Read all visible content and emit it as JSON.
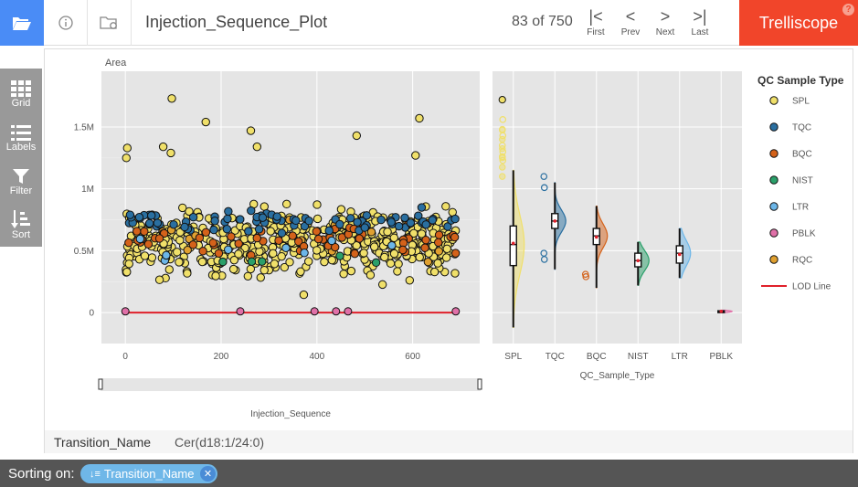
{
  "header": {
    "title": "Injection_Sequence_Plot",
    "panel_count": "83 of 750",
    "pager": [
      {
        "glyph": "|<",
        "label": "First"
      },
      {
        "glyph": "<",
        "label": "Prev"
      },
      {
        "glyph": ">",
        "label": "Next"
      },
      {
        "glyph": ">|",
        "label": "Last"
      }
    ],
    "brand": "Trelliscope",
    "help": "?"
  },
  "sidebar": {
    "items": [
      {
        "label": "Grid",
        "icon": "grid-icon"
      },
      {
        "label": "Labels",
        "icon": "labels-icon"
      },
      {
        "label": "Filter",
        "icon": "filter-icon"
      },
      {
        "label": "Sort",
        "icon": "sort-icon"
      }
    ]
  },
  "cognostic": {
    "name": "Transition_Name",
    "value": "Cer(d18:1/24:0)"
  },
  "footer": {
    "sorting_label": "Sorting on:",
    "sort_chip": "Transition_Name"
  },
  "colors": {
    "SPL": "#f0e06a",
    "TQC": "#2a6fa0",
    "BQC": "#d4621a",
    "NIST": "#2aa06a",
    "LTR": "#6cb6e8",
    "PBLK": "#e070a8",
    "RQC": "#e0a030",
    "LOD": "#e0202a",
    "plot_bg": "#e5e5e5",
    "header_blue": "#4a8cf6",
    "brand_red": "#f1452a"
  },
  "chart_data": [
    {
      "type": "scatter",
      "title": "",
      "ylabel": "Area",
      "xlabel": "Injection_Sequence",
      "xlim": [
        -50,
        740
      ],
      "ylim": [
        -250000,
        1950000
      ],
      "xticks": [
        0,
        200,
        400,
        600
      ],
      "xticklabels": [
        "0",
        "200",
        "400",
        "600"
      ],
      "yticks": [
        0,
        500000,
        1000000,
        1500000
      ],
      "yticklabels": [
        "0",
        "0.5M",
        "1M",
        "1.5M"
      ],
      "grid": true,
      "series": [
        {
          "name": "SPL",
          "n": 520,
          "x_range": [
            0,
            690
          ],
          "y_median": 560000,
          "y_spread": 230000
        },
        {
          "name": "TQC",
          "n": 80,
          "x_range": [
            5,
            690
          ],
          "y_median": 740000,
          "y_spread": 70000
        },
        {
          "name": "BQC",
          "n": 60,
          "x_range": [
            5,
            690
          ],
          "y_median": 600000,
          "y_spread": 90000
        },
        {
          "name": "NIST",
          "n": 5,
          "x_range": [
            100,
            620
          ],
          "y_median": 420000,
          "y_spread": 40000
        },
        {
          "name": "LTR",
          "n": 8,
          "x_range": [
            0,
            600
          ],
          "y_median": 500000,
          "y_spread": 120000
        },
        {
          "name": "PBLK",
          "n": 6,
          "x": [
            0,
            240,
            395,
            440,
            465,
            690
          ],
          "y": [
            10000,
            10000,
            10000,
            10000,
            10000,
            10000
          ]
        },
        {
          "name": "RQC",
          "n": 12,
          "x_range": [
            0,
            690
          ],
          "y_median": 600000,
          "y_spread": 200000
        }
      ],
      "outliers": [
        {
          "x": 97,
          "y": 1730000
        },
        {
          "x": 168,
          "y": 1540000
        },
        {
          "x": 614,
          "y": 1570000
        },
        {
          "x": 483,
          "y": 1430000
        },
        {
          "x": 262,
          "y": 1470000
        },
        {
          "x": 79,
          "y": 1340000
        },
        {
          "x": 4,
          "y": 1330000
        },
        {
          "x": 606,
          "y": 1270000
        },
        {
          "x": 2,
          "y": 1250000
        },
        {
          "x": 275,
          "y": 1340000
        },
        {
          "x": 95,
          "y": 1290000
        }
      ],
      "lod_line": {
        "name": "LOD Line",
        "y": 0
      }
    },
    {
      "type": "box",
      "title": "",
      "xlabel": "QC_Sample_Type",
      "categories": [
        "SPL",
        "TQC",
        "BQC",
        "NIST",
        "LTR",
        "PBLK"
      ],
      "boxes": [
        {
          "category": "SPL",
          "min": -120000,
          "q1": 380000,
          "median": 550000,
          "q3": 700000,
          "max": 1150000,
          "mean": 560000
        },
        {
          "category": "TQC",
          "min": 350000,
          "q1": 680000,
          "median": 740000,
          "q3": 800000,
          "max": 1050000,
          "mean": 740000
        },
        {
          "category": "BQC",
          "min": 200000,
          "q1": 550000,
          "median": 620000,
          "q3": 680000,
          "max": 860000,
          "mean": 610000
        },
        {
          "category": "NIST",
          "min": 220000,
          "q1": 370000,
          "median": 420000,
          "q3": 480000,
          "max": 570000,
          "mean": 420000
        },
        {
          "category": "LTR",
          "min": 280000,
          "q1": 400000,
          "median": 480000,
          "q3": 540000,
          "max": 680000,
          "mean": 470000
        },
        {
          "category": "PBLK",
          "min": 0,
          "q1": 5000,
          "median": 10000,
          "q3": 15000,
          "max": 20000,
          "mean": 10000
        }
      ],
      "outlier_points": [
        {
          "category": "SPL",
          "y": [
            1720000,
            1560000,
            1480000,
            1430000,
            1350000,
            1300000,
            1260000,
            1230000
          ]
        },
        {
          "category": "TQC",
          "y": [
            1100000,
            1010000,
            480000,
            430000
          ]
        },
        {
          "category": "BQC",
          "y": [
            310000,
            290000
          ]
        }
      ],
      "legend": {
        "title": "QC Sample Type",
        "placement": "right",
        "entries": [
          "SPL",
          "TQC",
          "BQC",
          "NIST",
          "LTR",
          "PBLK",
          "RQC",
          "LOD Line"
        ]
      }
    }
  ]
}
